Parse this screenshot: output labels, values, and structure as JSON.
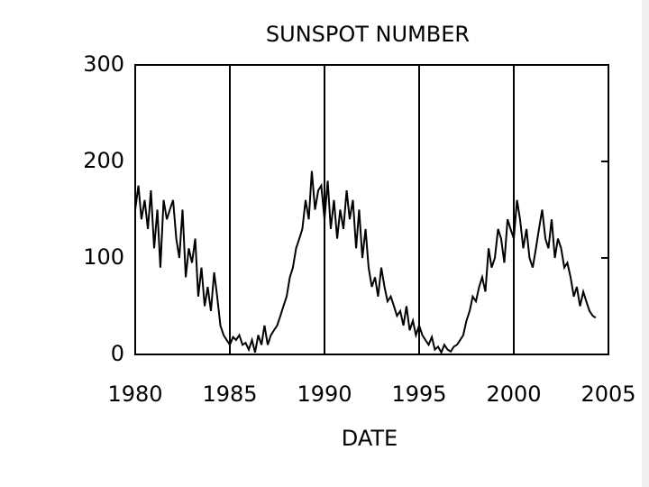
{
  "chart_data": {
    "type": "line",
    "title": "SUNSPOT NUMBER",
    "x_label": "DATE",
    "xlim": [
      1980,
      2005
    ],
    "xticks": [
      1980,
      1985,
      1990,
      1995,
      2000,
      2005
    ],
    "ylim": [
      0,
      300
    ],
    "yticks": [
      0,
      100,
      200,
      300
    ],
    "grid": true,
    "x": [
      1980,
      1980.17,
      1980.33,
      1980.5,
      1980.67,
      1980.83,
      1981,
      1981.17,
      1981.33,
      1981.5,
      1981.67,
      1981.83,
      1982,
      1982.17,
      1982.33,
      1982.5,
      1982.67,
      1982.83,
      1983,
      1983.17,
      1983.33,
      1983.5,
      1983.67,
      1983.83,
      1984,
      1984.17,
      1984.33,
      1984.5,
      1984.67,
      1984.83,
      1985,
      1985.17,
      1985.33,
      1985.5,
      1985.67,
      1985.83,
      1986,
      1986.17,
      1986.33,
      1986.5,
      1986.67,
      1986.83,
      1987,
      1987.17,
      1987.33,
      1987.5,
      1987.67,
      1987.83,
      1988,
      1988.17,
      1988.33,
      1988.5,
      1988.67,
      1988.83,
      1989,
      1989.17,
      1989.33,
      1989.5,
      1989.67,
      1989.83,
      1990,
      1990.17,
      1990.33,
      1990.5,
      1990.67,
      1990.83,
      1991,
      1991.17,
      1991.33,
      1991.5,
      1991.67,
      1991.83,
      1992,
      1992.17,
      1992.33,
      1992.5,
      1992.67,
      1992.83,
      1993,
      1993.17,
      1993.33,
      1993.5,
      1993.67,
      1993.83,
      1994,
      1994.17,
      1994.33,
      1994.5,
      1994.67,
      1994.83,
      1995,
      1995.17,
      1995.33,
      1995.5,
      1995.67,
      1995.83,
      1996,
      1996.17,
      1996.33,
      1996.5,
      1996.67,
      1996.83,
      1997,
      1997.17,
      1997.33,
      1997.5,
      1997.67,
      1997.83,
      1998,
      1998.17,
      1998.33,
      1998.5,
      1998.67,
      1998.83,
      1999,
      1999.17,
      1999.33,
      1999.5,
      1999.67,
      1999.83,
      2000,
      2000.17,
      2000.33,
      2000.5,
      2000.67,
      2000.83,
      2001,
      2001.17,
      2001.33,
      2001.5,
      2001.67,
      2001.83,
      2002,
      2002.17,
      2002.33,
      2002.5,
      2002.67,
      2002.83,
      2003,
      2003.17,
      2003.33,
      2003.5,
      2003.67,
      2003.83,
      2004,
      2004.17,
      2004.33
    ],
    "series": [
      {
        "color": "#000000",
        "values": [
          150,
          175,
          140,
          160,
          130,
          170,
          110,
          150,
          90,
          160,
          140,
          150,
          160,
          120,
          100,
          150,
          80,
          110,
          95,
          120,
          60,
          90,
          50,
          70,
          45,
          85,
          60,
          30,
          20,
          15,
          10,
          18,
          15,
          20,
          10,
          12,
          5,
          15,
          2,
          20,
          10,
          30,
          10,
          20,
          25,
          30,
          40,
          50,
          60,
          80,
          90,
          110,
          120,
          130,
          160,
          140,
          190,
          150,
          170,
          175,
          140,
          180,
          130,
          160,
          120,
          150,
          130,
          170,
          140,
          160,
          110,
          150,
          100,
          130,
          90,
          70,
          80,
          60,
          90,
          70,
          55,
          60,
          50,
          40,
          45,
          30,
          50,
          25,
          35,
          20,
          30,
          20,
          15,
          10,
          18,
          5,
          8,
          2,
          10,
          5,
          3,
          8,
          10,
          15,
          20,
          35,
          45,
          60,
          55,
          70,
          80,
          65,
          110,
          90,
          100,
          130,
          120,
          95,
          140,
          130,
          120,
          160,
          140,
          110,
          130,
          100,
          90,
          110,
          130,
          150,
          120,
          110,
          140,
          100,
          120,
          110,
          90,
          95,
          80,
          60,
          70,
          50,
          65,
          55,
          45,
          40,
          38
        ]
      }
    ]
  }
}
